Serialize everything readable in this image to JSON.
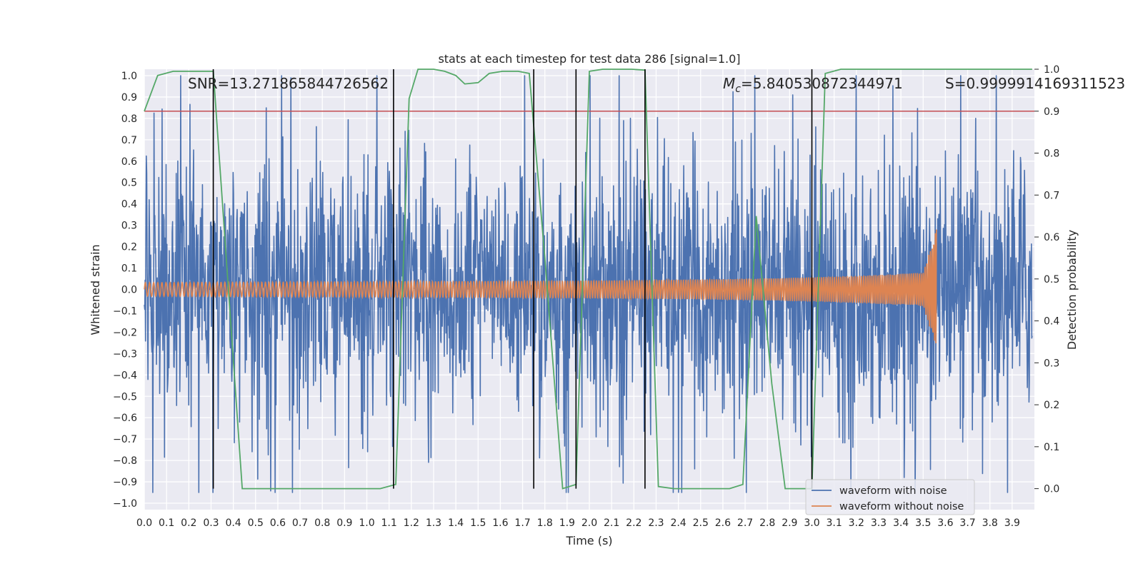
{
  "chart_data": {
    "type": "line",
    "title": "stats at each timestep for test data 286 [signal=1.0]",
    "xlabel": "Time (s)",
    "ylabel": "Whitened strain",
    "y2label": "Detection probability",
    "xlim": [
      0.0,
      4.0
    ],
    "ylim": [
      -1.03,
      1.03
    ],
    "y2lim": [
      -0.05,
      1.0
    ],
    "xticks": [
      "0.0",
      "0.1",
      "0.2",
      "0.3",
      "0.4",
      "0.5",
      "0.6",
      "0.7",
      "0.8",
      "0.9",
      "1.0",
      "1.1",
      "1.2",
      "1.3",
      "1.4",
      "1.5",
      "1.6",
      "1.7",
      "1.8",
      "1.9",
      "2.0",
      "2.1",
      "2.2",
      "2.3",
      "2.4",
      "2.5",
      "2.6",
      "2.7",
      "2.8",
      "2.9",
      "3.0",
      "3.1",
      "3.2",
      "3.3",
      "3.4",
      "3.5",
      "3.6",
      "3.7",
      "3.8",
      "3.9"
    ],
    "yticks": [
      "1.0",
      "0.9",
      "0.8",
      "0.7",
      "0.6",
      "0.5",
      "0.4",
      "0.3",
      "0.2",
      "0.1",
      "0.0",
      "−0.1",
      "−0.2",
      "−0.3",
      "−0.4",
      "−0.5",
      "−0.6",
      "−0.7",
      "−0.8",
      "−0.9",
      "−1.0"
    ],
    "y2ticks": [
      "1.0",
      "0.9",
      "0.8",
      "0.7",
      "0.6",
      "0.5",
      "0.4",
      "0.3",
      "0.2",
      "0.1",
      "0.0"
    ],
    "annotations": {
      "snr": "SNR=13.271865844726562",
      "mc_symbol": "M",
      "mc_sub": "c",
      "mc_value": "=5.840530872344971",
      "stat": "S=0.9999914169311523"
    },
    "threshold": 0.9,
    "noise_amplitude": 0.62,
    "signal_merger_time": 3.56,
    "detection_probability": {
      "t": [
        0.0,
        0.06,
        0.13,
        0.31,
        0.44,
        1.06,
        1.13,
        1.19,
        1.23,
        1.3,
        1.35,
        1.4,
        1.44,
        1.5,
        1.55,
        1.61,
        1.68,
        1.73,
        1.8,
        1.88,
        1.94,
        2.0,
        2.06,
        2.13,
        2.19,
        2.25,
        2.31,
        2.38,
        2.44,
        2.63,
        2.69,
        2.75,
        2.82,
        2.88,
        3.0,
        3.06,
        3.13,
        3.19,
        3.99
      ],
      "p": [
        0.9,
        0.985,
        0.995,
        0.995,
        0.0,
        0.0,
        0.01,
        0.93,
        1.0,
        1.0,
        0.995,
        0.985,
        0.965,
        0.968,
        0.99,
        0.995,
        0.995,
        0.99,
        0.55,
        0.0,
        0.01,
        0.995,
        1.0,
        1.0,
        1.0,
        0.998,
        0.005,
        0.0,
        0.0,
        0.0,
        0.01,
        0.65,
        0.25,
        0.0,
        0.0,
        0.99,
        1.0,
        1.0,
        1.0
      ]
    },
    "trigger_lines_t": [
      0.31,
      1.12,
      1.75,
      1.94,
      2.25,
      3.0
    ],
    "series": [
      {
        "name": "waveform with noise",
        "color": "#4c72b0"
      },
      {
        "name": "waveform without noise",
        "color": "#dd8452"
      },
      {
        "name": "detection probability",
        "color": "#55a868"
      },
      {
        "name": "threshold",
        "color": "#c44e52"
      }
    ],
    "legend": {
      "position": "lower-right",
      "entries": [
        "waveform with noise",
        "waveform without noise"
      ]
    }
  }
}
